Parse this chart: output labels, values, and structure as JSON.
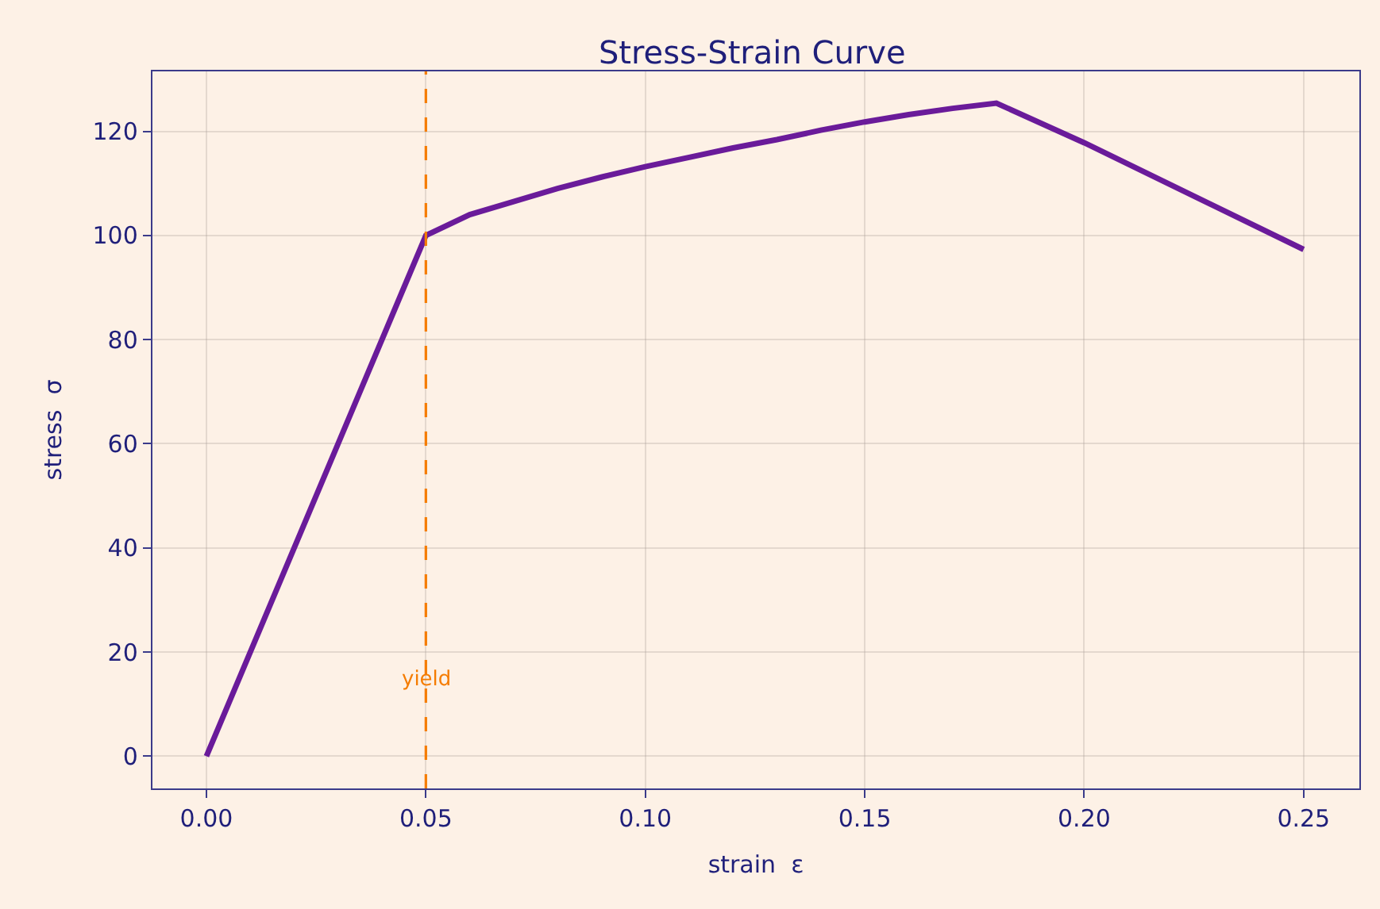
{
  "chart_data": {
    "type": "line",
    "title": "Stress-Strain Curve",
    "xlabel": "strain  ε",
    "ylabel": "stress  σ",
    "x": [
      0,
      0.05,
      0.06,
      0.07,
      0.08,
      0.09,
      0.1,
      0.11,
      0.12,
      0.13,
      0.14,
      0.15,
      0.16,
      0.17,
      0.18,
      0.2,
      0.25
    ],
    "series": [
      {
        "color": "#6a1b9a",
        "values": [
          0,
          100,
          104,
          106.5,
          109,
          111.2,
          113.2,
          115,
          116.8,
          118.4,
          120.2,
          121.8,
          123.2,
          124.4,
          125.4,
          117.8,
          97.3
        ]
      }
    ],
    "xlim": [
      -0.0123,
      0.2627
    ],
    "xticks": [
      {
        "value": 0,
        "label": "0.00"
      },
      {
        "value": 0.05,
        "label": "0.05"
      },
      {
        "value": 0.1,
        "label": "0.10"
      },
      {
        "value": 0.15,
        "label": "0.15"
      },
      {
        "value": 0.2,
        "label": "0.20"
      },
      {
        "value": 0.25,
        "label": "0.25"
      }
    ],
    "ylim": [
      -6.2,
      131.5
    ],
    "yticks": [
      0,
      20,
      40,
      60,
      80,
      100,
      120
    ],
    "ref_lines": [
      {
        "axis": "x",
        "value": 0.05,
        "label": "yield",
        "color": "#f57c00",
        "line_style": "dashed"
      }
    ],
    "grid": true,
    "marker": "none",
    "line_style": "solid"
  }
}
